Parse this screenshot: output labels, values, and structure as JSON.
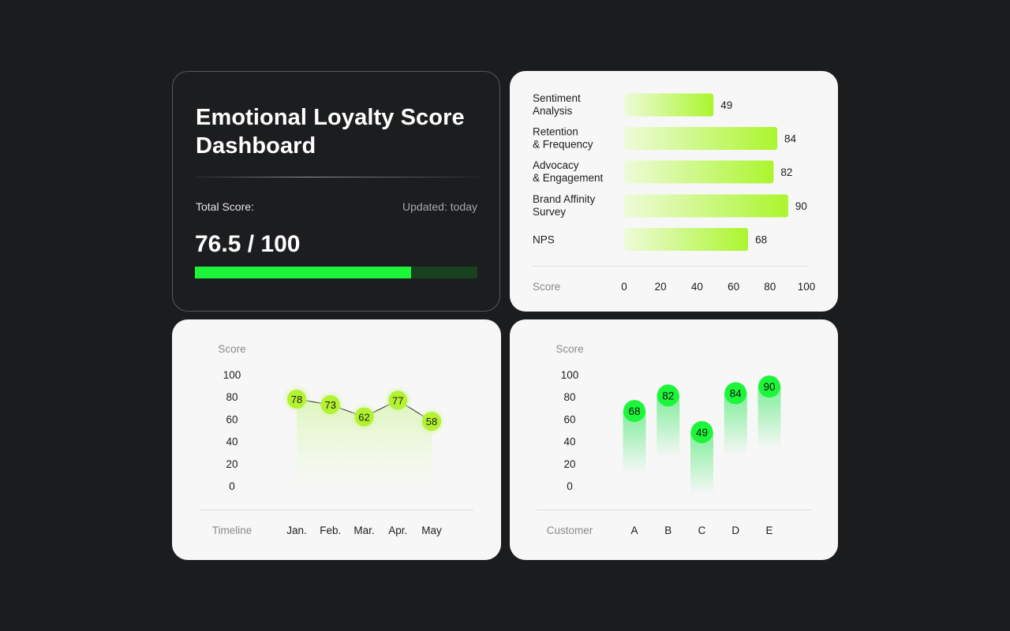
{
  "dashboard": {
    "title": "Emotional Loyalty Score Dashboard",
    "total_label": "Total Score:",
    "updated_label": "Updated: today",
    "total_value": "76.5 / 100",
    "total_score": 76.5,
    "max_score": 100
  },
  "colors": {
    "background": "#1b1c1e",
    "card_light": "#f7f7f7",
    "accent_green": "#1df53a",
    "lime": "#b5f03a",
    "progress_track": "#19401f"
  },
  "chart_data": [
    {
      "type": "bar",
      "orientation": "horizontal",
      "categories": [
        [
          "Sentiment",
          "Analysis"
        ],
        [
          "Retention",
          "& Frequency"
        ],
        [
          "Advocacy",
          "& Engagement"
        ],
        [
          "Brand Affinity",
          "Survey"
        ],
        [
          "NPS"
        ]
      ],
      "values": [
        49,
        84,
        82,
        90,
        68
      ],
      "xlabel": "Score",
      "xticks": [
        "0",
        "20",
        "40",
        "60",
        "80",
        "100"
      ],
      "xlim": [
        0,
        100
      ]
    },
    {
      "type": "line",
      "x": [
        "Jan.",
        "Feb.",
        "Mar.",
        "Apr.",
        "May"
      ],
      "values": [
        78,
        73,
        62,
        77,
        58
      ],
      "xlabel": "Timeline",
      "ylabel": "Score",
      "yticks": [
        "100",
        "80",
        "60",
        "40",
        "20",
        "0"
      ],
      "ylim": [
        0,
        100
      ]
    },
    {
      "type": "bar",
      "orientation": "vertical",
      "categories": [
        "A",
        "B",
        "C",
        "D",
        "E"
      ],
      "values": [
        68,
        82,
        49,
        84,
        90
      ],
      "xlabel": "Customer",
      "ylabel": "Score",
      "yticks": [
        "100",
        "80",
        "60",
        "40",
        "20",
        "0"
      ],
      "ylim": [
        0,
        100
      ]
    }
  ]
}
